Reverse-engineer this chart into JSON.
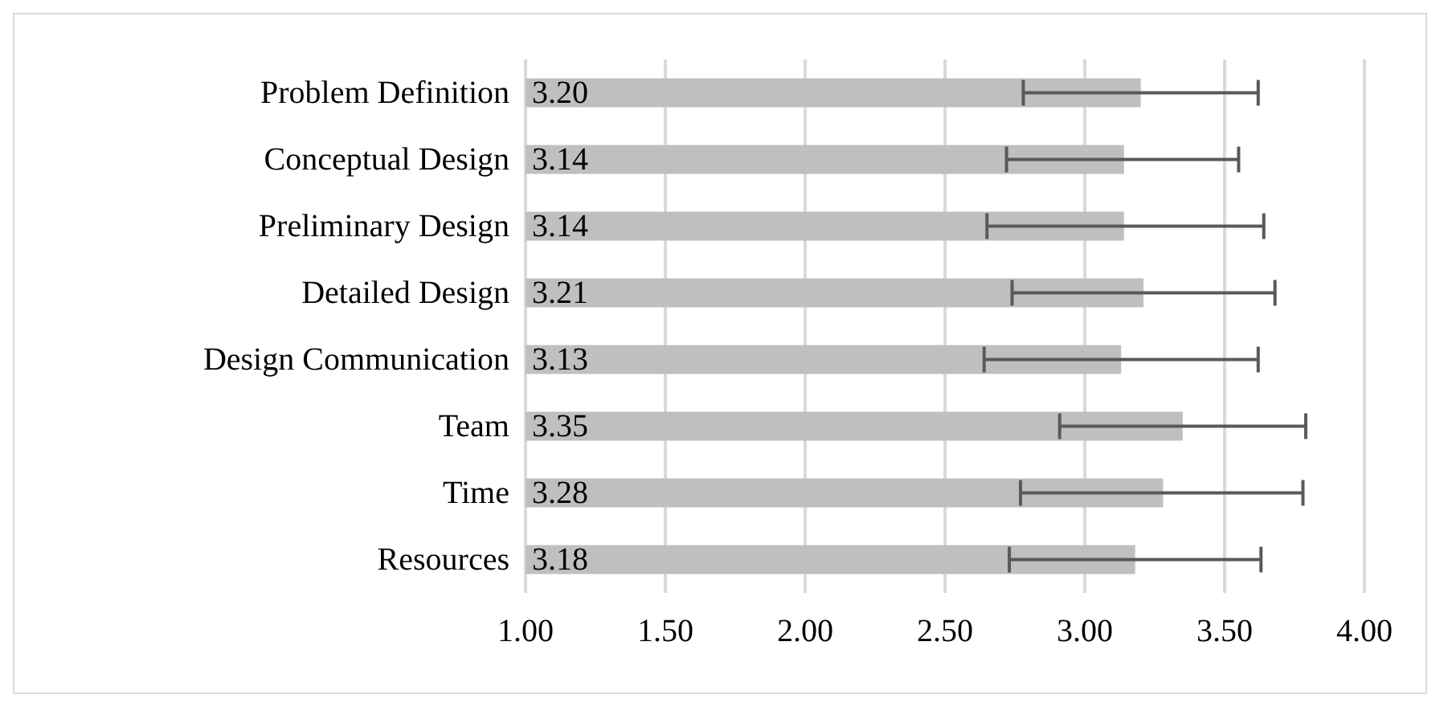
{
  "chart_data": {
    "type": "bar",
    "orientation": "horizontal",
    "categories": [
      "Problem Definition",
      "Conceptual Design",
      "Preliminary Design",
      "Detailed Design",
      "Design Communication",
      "Team",
      "Time",
      "Resources"
    ],
    "values": [
      3.2,
      3.14,
      3.14,
      3.21,
      3.13,
      3.35,
      3.28,
      3.18
    ],
    "value_labels": [
      "3.20",
      "3.14",
      "3.14",
      "3.21",
      "3.13",
      "3.35",
      "3.28",
      "3.18"
    ],
    "errors": [
      [
        2.78,
        3.62
      ],
      [
        2.72,
        3.55
      ],
      [
        2.65,
        3.64
      ],
      [
        2.74,
        3.68
      ],
      [
        2.64,
        3.62
      ],
      [
        2.91,
        3.79
      ],
      [
        2.77,
        3.78
      ],
      [
        2.73,
        3.63
      ]
    ],
    "color": "#bfbfbf",
    "xlim": [
      1,
      4
    ],
    "xticks": [
      {
        "value": 1,
        "label": "1.00"
      },
      {
        "value": 1.5,
        "label": "1.50"
      },
      {
        "value": 2,
        "label": "2.00"
      },
      {
        "value": 2.5,
        "label": "2.50"
      },
      {
        "value": 3,
        "label": "3.00"
      },
      {
        "value": 3.5,
        "label": "3.50"
      },
      {
        "value": 4,
        "label": "4.00"
      }
    ],
    "grid": "x"
  }
}
